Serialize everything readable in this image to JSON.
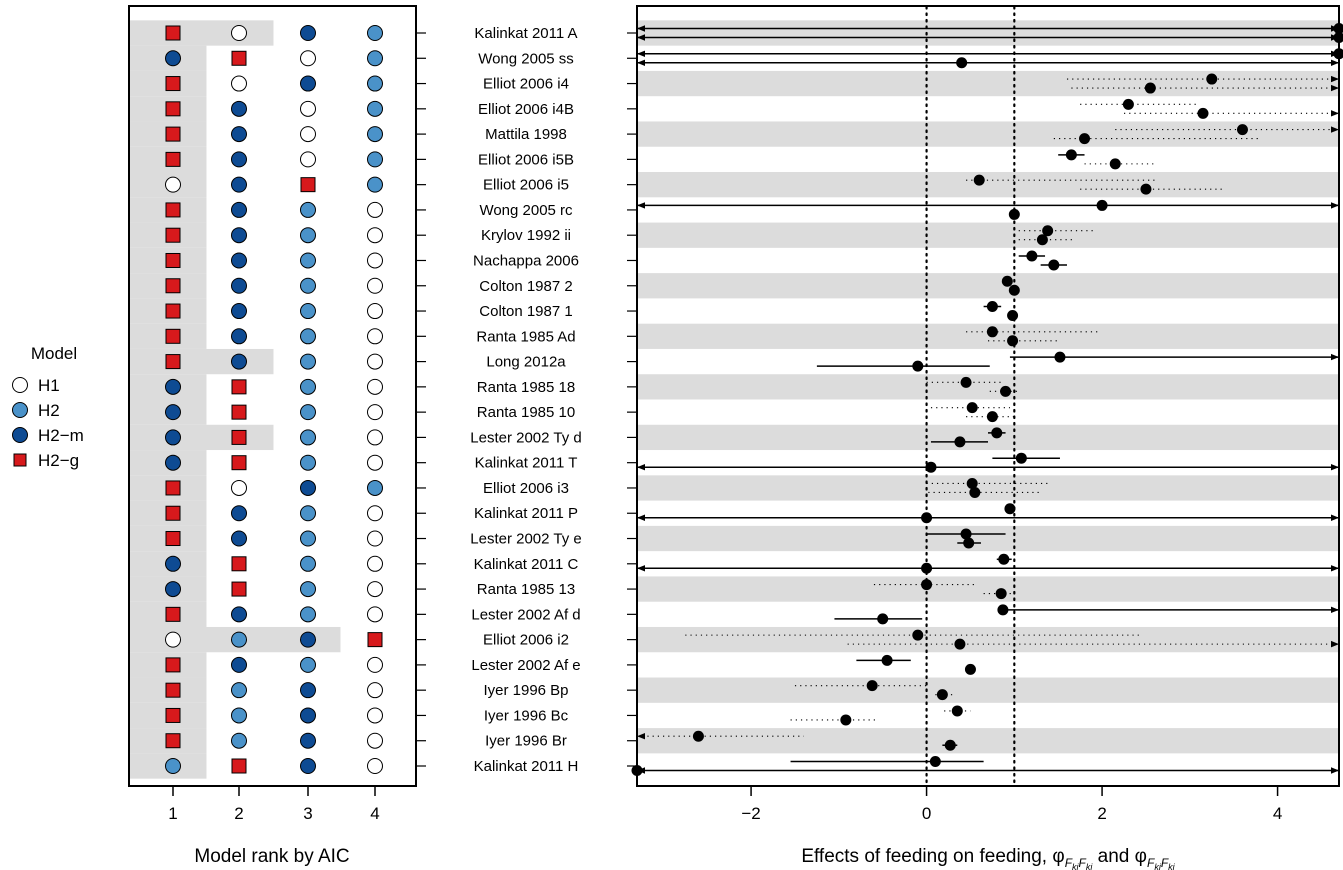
{
  "legend": {
    "title": "Model",
    "items": [
      {
        "key": "H1",
        "label": "H1",
        "shape": "circle",
        "fill": "#ffffff"
      },
      {
        "key": "H2",
        "label": "H2",
        "shape": "circle",
        "fill": "#4a92c9"
      },
      {
        "key": "H2m",
        "label": "H2−m",
        "shape": "circle",
        "fill": "#0e4b93"
      },
      {
        "key": "H2g",
        "label": "H2−g",
        "shape": "square",
        "fill": "#d7191c"
      }
    ]
  },
  "chart_data": [
    {
      "type": "table",
      "name": "model-ranks",
      "xlabel": "Model rank by AIC",
      "x_ticks": [
        "1",
        "2",
        "3",
        "4"
      ],
      "rows": [
        {
          "study": "Kalinkat 2011 A",
          "ranks": [
            "H2g",
            "H1",
            "H2m",
            "H2"
          ],
          "shaded_through": 2
        },
        {
          "study": "Wong 2005 ss",
          "ranks": [
            "H2m",
            "H2g",
            "H1",
            "H2"
          ],
          "shaded_through": 1
        },
        {
          "study": "Elliot 2006 i4",
          "ranks": [
            "H2g",
            "H1",
            "H2m",
            "H2"
          ],
          "shaded_through": 1
        },
        {
          "study": "Elliot 2006 i4B",
          "ranks": [
            "H2g",
            "H2m",
            "H1",
            "H2"
          ],
          "shaded_through": 1
        },
        {
          "study": "Mattila 1998",
          "ranks": [
            "H2g",
            "H2m",
            "H1",
            "H2"
          ],
          "shaded_through": 1
        },
        {
          "study": "Elliot 2006 i5B",
          "ranks": [
            "H2g",
            "H2m",
            "H1",
            "H2"
          ],
          "shaded_through": 1
        },
        {
          "study": "Elliot 2006 i5",
          "ranks": [
            "H1",
            "H2m",
            "H2g",
            "H2"
          ],
          "shaded_through": 1
        },
        {
          "study": "Wong 2005 rc",
          "ranks": [
            "H2g",
            "H2m",
            "H2",
            "H1"
          ],
          "shaded_through": 1
        },
        {
          "study": "Krylov 1992 ii",
          "ranks": [
            "H2g",
            "H2m",
            "H2",
            "H1"
          ],
          "shaded_through": 1
        },
        {
          "study": "Nachappa 2006",
          "ranks": [
            "H2g",
            "H2m",
            "H2",
            "H1"
          ],
          "shaded_through": 1
        },
        {
          "study": "Colton 1987 2",
          "ranks": [
            "H2g",
            "H2m",
            "H2",
            "H1"
          ],
          "shaded_through": 1
        },
        {
          "study": "Colton 1987 1",
          "ranks": [
            "H2g",
            "H2m",
            "H2",
            "H1"
          ],
          "shaded_through": 1
        },
        {
          "study": "Ranta 1985 Ad",
          "ranks": [
            "H2g",
            "H2m",
            "H2",
            "H1"
          ],
          "shaded_through": 1
        },
        {
          "study": "Long 2012a",
          "ranks": [
            "H2g",
            "H2m",
            "H2",
            "H1"
          ],
          "shaded_through": 2
        },
        {
          "study": "Ranta 1985 18",
          "ranks": [
            "H2m",
            "H2g",
            "H2",
            "H1"
          ],
          "shaded_through": 1
        },
        {
          "study": "Ranta 1985 10",
          "ranks": [
            "H2m",
            "H2g",
            "H2",
            "H1"
          ],
          "shaded_through": 1
        },
        {
          "study": "Lester 2002 Ty d",
          "ranks": [
            "H2m",
            "H2g",
            "H2",
            "H1"
          ],
          "shaded_through": 2
        },
        {
          "study": "Kalinkat 2011 T",
          "ranks": [
            "H2m",
            "H2g",
            "H2",
            "H1"
          ],
          "shaded_through": 1
        },
        {
          "study": "Elliot 2006 i3",
          "ranks": [
            "H2g",
            "H1",
            "H2m",
            "H2"
          ],
          "shaded_through": 1
        },
        {
          "study": "Kalinkat 2011 P",
          "ranks": [
            "H2g",
            "H2m",
            "H2",
            "H1"
          ],
          "shaded_through": 1
        },
        {
          "study": "Lester 2002 Ty e",
          "ranks": [
            "H2g",
            "H2m",
            "H2",
            "H1"
          ],
          "shaded_through": 1
        },
        {
          "study": "Kalinkat 2011 C",
          "ranks": [
            "H2m",
            "H2g",
            "H2",
            "H1"
          ],
          "shaded_through": 1
        },
        {
          "study": "Ranta 1985 13",
          "ranks": [
            "H2m",
            "H2g",
            "H2",
            "H1"
          ],
          "shaded_through": 1
        },
        {
          "study": "Lester 2002 Af d",
          "ranks": [
            "H2g",
            "H2m",
            "H2",
            "H1"
          ],
          "shaded_through": 1
        },
        {
          "study": "Elliot 2006 i2",
          "ranks": [
            "H1",
            "H2",
            "H2m",
            "H2g"
          ],
          "shaded_through": 3
        },
        {
          "study": "Lester 2002 Af e",
          "ranks": [
            "H2g",
            "H2m",
            "H2",
            "H1"
          ],
          "shaded_through": 1
        },
        {
          "study": "Iyer 1996 Bp",
          "ranks": [
            "H2g",
            "H2",
            "H2m",
            "H1"
          ],
          "shaded_through": 1
        },
        {
          "study": "Iyer 1996 Bc",
          "ranks": [
            "H2g",
            "H2",
            "H2m",
            "H1"
          ],
          "shaded_through": 1
        },
        {
          "study": "Iyer 1996 Br",
          "ranks": [
            "H2g",
            "H2",
            "H2m",
            "H1"
          ],
          "shaded_through": 1
        },
        {
          "study": "Kalinkat 2011 H",
          "ranks": [
            "H2",
            "H2g",
            "H2m",
            "H1"
          ],
          "shaded_through": 1
        }
      ]
    },
    {
      "type": "scatter",
      "name": "feeding-effects",
      "xlabel_prefix": "Effects of feeding on feeding, ",
      "xlabel_joiner": " and ",
      "xlim": [
        -3.3,
        4.7
      ],
      "x_ticks": [
        -2,
        0,
        2,
        4
      ],
      "reference_lines": [
        0,
        1
      ],
      "rows": [
        {
          "study": "Kalinkat 2011 A",
          "estimates": [
            {
              "value": 4.7,
              "lo": -3.3,
              "hi": 4.7,
              "ci": "solid",
              "arrow_left": true,
              "arrow_right": true
            },
            {
              "value": 4.7,
              "lo": -3.3,
              "hi": 4.7,
              "ci": "solid",
              "arrow_left": true,
              "arrow_right": true
            }
          ]
        },
        {
          "study": "Wong 2005 ss",
          "estimates": [
            {
              "value": 4.7,
              "lo": -3.3,
              "hi": 4.7,
              "ci": "solid",
              "arrow_left": true,
              "arrow_right": true
            },
            {
              "value": 0.4,
              "lo": -3.3,
              "hi": 4.7,
              "ci": "solid",
              "arrow_left": true,
              "arrow_right": true
            }
          ]
        },
        {
          "study": "Elliot 2006 i4",
          "estimates": [
            {
              "value": 3.25,
              "lo": 1.6,
              "hi": 4.7,
              "ci": "dotted",
              "arrow_right": true
            },
            {
              "value": 2.55,
              "lo": 1.65,
              "hi": 4.7,
              "ci": "dotted",
              "arrow_right": true
            }
          ]
        },
        {
          "study": "Elliot 2006 i4B",
          "estimates": [
            {
              "value": 2.3,
              "lo": 1.75,
              "hi": 3.1,
              "ci": "dotted"
            },
            {
              "value": 3.15,
              "lo": 2.25,
              "hi": 4.7,
              "ci": "dotted",
              "arrow_right": true
            }
          ]
        },
        {
          "study": "Mattila 1998",
          "estimates": [
            {
              "value": 3.6,
              "lo": 2.15,
              "hi": 4.7,
              "ci": "dotted",
              "arrow_right": true
            },
            {
              "value": 1.8,
              "lo": 1.45,
              "hi": 3.8,
              "ci": "dotted"
            }
          ]
        },
        {
          "study": "Elliot 2006 i5B",
          "estimates": [
            {
              "value": 1.65,
              "lo": 1.5,
              "hi": 1.8,
              "ci": "solid"
            },
            {
              "value": 2.15,
              "lo": 1.8,
              "hi": 2.6,
              "ci": "dotted"
            }
          ]
        },
        {
          "study": "Elliot 2006 i5",
          "estimates": [
            {
              "value": 0.6,
              "lo": 0.45,
              "hi": 2.6,
              "ci": "dotted"
            },
            {
              "value": 2.5,
              "lo": 1.75,
              "hi": 3.4,
              "ci": "dotted"
            }
          ]
        },
        {
          "study": "Wong 2005 rc",
          "estimates": [
            {
              "value": 2.0,
              "lo": -3.3,
              "hi": 4.7,
              "ci": "solid",
              "arrow_left": true,
              "arrow_right": true
            },
            {
              "value": 1.0,
              "lo": 0.97,
              "hi": 1.03,
              "ci": "solid"
            }
          ]
        },
        {
          "study": "Krylov 1992 ii",
          "estimates": [
            {
              "value": 1.38,
              "lo": 1.05,
              "hi": 1.9,
              "ci": "dotted"
            },
            {
              "value": 1.32,
              "lo": 1.05,
              "hi": 1.7,
              "ci": "dotted"
            }
          ]
        },
        {
          "study": "Nachappa 2006",
          "estimates": [
            {
              "value": 1.2,
              "lo": 1.05,
              "hi": 1.35,
              "ci": "solid"
            },
            {
              "value": 1.45,
              "lo": 1.3,
              "hi": 1.6,
              "ci": "solid"
            }
          ]
        },
        {
          "study": "Colton 1987 2",
          "estimates": [
            {
              "value": 0.92,
              "lo": 0.88,
              "hi": 0.97,
              "ci": "solid"
            },
            {
              "value": 1.0,
              "lo": 0.97,
              "hi": 1.04,
              "ci": "solid"
            }
          ]
        },
        {
          "study": "Colton 1987 1",
          "estimates": [
            {
              "value": 0.75,
              "lo": 0.65,
              "hi": 0.85,
              "ci": "solid"
            },
            {
              "value": 0.98,
              "lo": 0.95,
              "hi": 1.02,
              "ci": "solid"
            }
          ]
        },
        {
          "study": "Ranta 1985 Ad",
          "estimates": [
            {
              "value": 0.75,
              "lo": 0.45,
              "hi": 1.95,
              "ci": "dotted"
            },
            {
              "value": 0.98,
              "lo": 0.7,
              "hi": 1.5,
              "ci": "dotted"
            }
          ]
        },
        {
          "study": "Long 2012a",
          "estimates": [
            {
              "value": 1.52,
              "lo": 0.95,
              "hi": 4.7,
              "ci": "solid",
              "arrow_right": true
            },
            {
              "value": -0.1,
              "lo": -1.25,
              "hi": 0.72,
              "ci": "solid"
            }
          ]
        },
        {
          "study": "Ranta 1985 18",
          "estimates": [
            {
              "value": 0.45,
              "lo": 0.0,
              "hi": 0.85,
              "ci": "dotted"
            },
            {
              "value": 0.9,
              "lo": 0.72,
              "hi": 1.05,
              "ci": "dotted"
            }
          ]
        },
        {
          "study": "Ranta 1985 10",
          "estimates": [
            {
              "value": 0.52,
              "lo": 0.05,
              "hi": 0.95,
              "ci": "dotted"
            },
            {
              "value": 0.75,
              "lo": 0.45,
              "hi": 1.0,
              "ci": "dotted"
            }
          ]
        },
        {
          "study": "Lester 2002 Ty d",
          "estimates": [
            {
              "value": 0.8,
              "lo": 0.7,
              "hi": 0.9,
              "ci": "solid"
            },
            {
              "value": 0.38,
              "lo": 0.05,
              "hi": 0.7,
              "ci": "solid"
            }
          ]
        },
        {
          "study": "Kalinkat 2011 T",
          "estimates": [
            {
              "value": 1.08,
              "lo": 0.75,
              "hi": 1.52,
              "ci": "solid"
            },
            {
              "value": 0.05,
              "lo": -3.3,
              "hi": 4.7,
              "ci": "solid",
              "arrow_left": true,
              "arrow_right": true
            }
          ]
        },
        {
          "study": "Elliot 2006 i3",
          "estimates": [
            {
              "value": 0.52,
              "lo": 0.0,
              "hi": 1.4,
              "ci": "dotted"
            },
            {
              "value": 0.55,
              "lo": 0.02,
              "hi": 1.3,
              "ci": "dotted"
            }
          ]
        },
        {
          "study": "Kalinkat 2011 P",
          "estimates": [
            {
              "value": 0.95,
              "lo": 0.9,
              "hi": 1.0,
              "ci": "solid"
            },
            {
              "value": 0.0,
              "lo": -3.3,
              "hi": 4.7,
              "ci": "solid",
              "arrow_left": true,
              "arrow_right": true
            }
          ]
        },
        {
          "study": "Lester 2002 Ty e",
          "estimates": [
            {
              "value": 0.45,
              "lo": 0.0,
              "hi": 0.9,
              "ci": "solid"
            },
            {
              "value": 0.48,
              "lo": 0.35,
              "hi": 0.62,
              "ci": "solid"
            }
          ]
        },
        {
          "study": "Kalinkat 2011 C",
          "estimates": [
            {
              "value": 0.88,
              "lo": 0.8,
              "hi": 0.97,
              "ci": "solid"
            },
            {
              "value": 0.0,
              "lo": -3.3,
              "hi": 4.7,
              "ci": "solid",
              "arrow_left": true,
              "arrow_right": true
            }
          ]
        },
        {
          "study": "Ranta 1985 13",
          "estimates": [
            {
              "value": 0.0,
              "lo": -0.6,
              "hi": 0.55,
              "ci": "dotted"
            },
            {
              "value": 0.85,
              "lo": 0.65,
              "hi": 1.0,
              "ci": "dotted"
            }
          ]
        },
        {
          "study": "Lester 2002 Af d",
          "estimates": [
            {
              "value": 0.87,
              "lo": 0.85,
              "hi": 4.7,
              "ci": "solid",
              "arrow_right": true
            },
            {
              "value": -0.5,
              "lo": -1.05,
              "hi": -0.05,
              "ci": "solid"
            }
          ]
        },
        {
          "study": "Elliot 2006 i2",
          "estimates": [
            {
              "value": -0.1,
              "lo": -2.75,
              "hi": 2.45,
              "ci": "dotted"
            },
            {
              "value": 0.38,
              "lo": -0.9,
              "hi": 4.7,
              "ci": "dotted",
              "arrow_right": true
            }
          ]
        },
        {
          "study": "Lester 2002 Af e",
          "estimates": [
            {
              "value": -0.45,
              "lo": -0.8,
              "hi": -0.18,
              "ci": "solid"
            },
            {
              "value": 0.5,
              "lo": 0.45,
              "hi": 0.55,
              "ci": "solid"
            }
          ]
        },
        {
          "study": "Iyer 1996 Bp",
          "estimates": [
            {
              "value": -0.62,
              "lo": -1.5,
              "hi": 0.0,
              "ci": "dotted"
            },
            {
              "value": 0.18,
              "lo": 0.1,
              "hi": 0.3,
              "ci": "dotted"
            }
          ]
        },
        {
          "study": "Iyer 1996 Bc",
          "estimates": [
            {
              "value": 0.35,
              "lo": 0.2,
              "hi": 0.5,
              "ci": "dotted"
            },
            {
              "value": -0.92,
              "lo": -1.55,
              "hi": -0.55,
              "ci": "dotted"
            }
          ]
        },
        {
          "study": "Iyer 1996 Br",
          "estimates": [
            {
              "value": -2.6,
              "lo": -3.3,
              "hi": -1.4,
              "ci": "dotted",
              "arrow_left": true
            },
            {
              "value": 0.27,
              "lo": 0.18,
              "hi": 0.35,
              "ci": "solid"
            }
          ]
        },
        {
          "study": "Kalinkat 2011 H",
          "estimates": [
            {
              "value": 0.1,
              "lo": -1.55,
              "hi": 0.65,
              "ci": "solid"
            },
            {
              "value": -3.3,
              "lo": -3.3,
              "hi": 4.7,
              "ci": "solid",
              "arrow_left": true,
              "arrow_right": true
            }
          ]
        }
      ]
    }
  ]
}
